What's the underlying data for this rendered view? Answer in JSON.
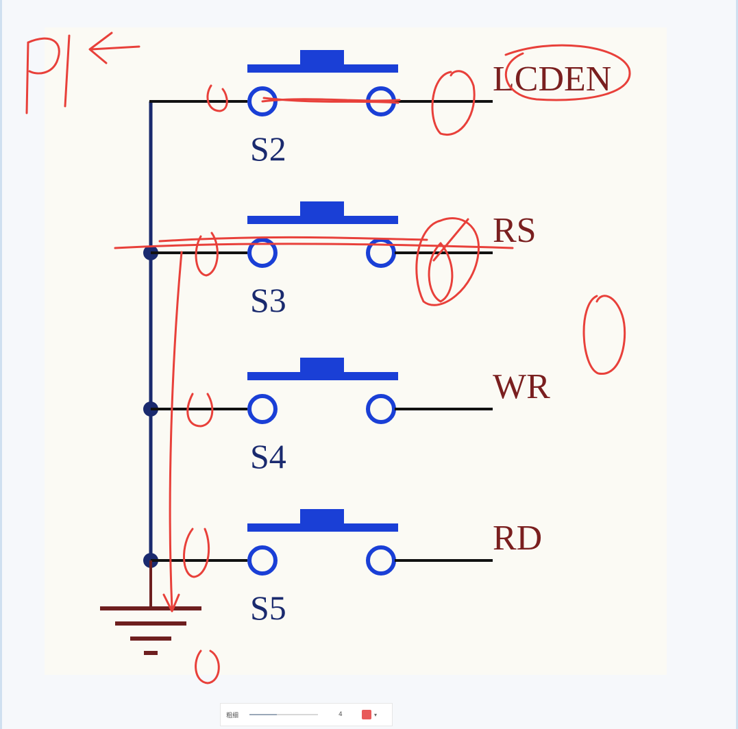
{
  "diagram": {
    "annotation_port": "P1",
    "switches": [
      {
        "id": "S2",
        "net": "LCDEN"
      },
      {
        "id": "S3",
        "net": "RS"
      },
      {
        "id": "S4",
        "net": "WR"
      },
      {
        "id": "S5",
        "net": "RD"
      }
    ]
  },
  "toolbar": {
    "width_label": "粗细",
    "width_value": "4",
    "width_level": 0.4,
    "color": "#e85a5a"
  },
  "colors": {
    "switch": "#1a3fd6",
    "wire": "#111111",
    "bus": "#1a2a6e",
    "ground": "#6e1f1f",
    "ink": "#e8403a",
    "paper": "#fbfaf4"
  }
}
